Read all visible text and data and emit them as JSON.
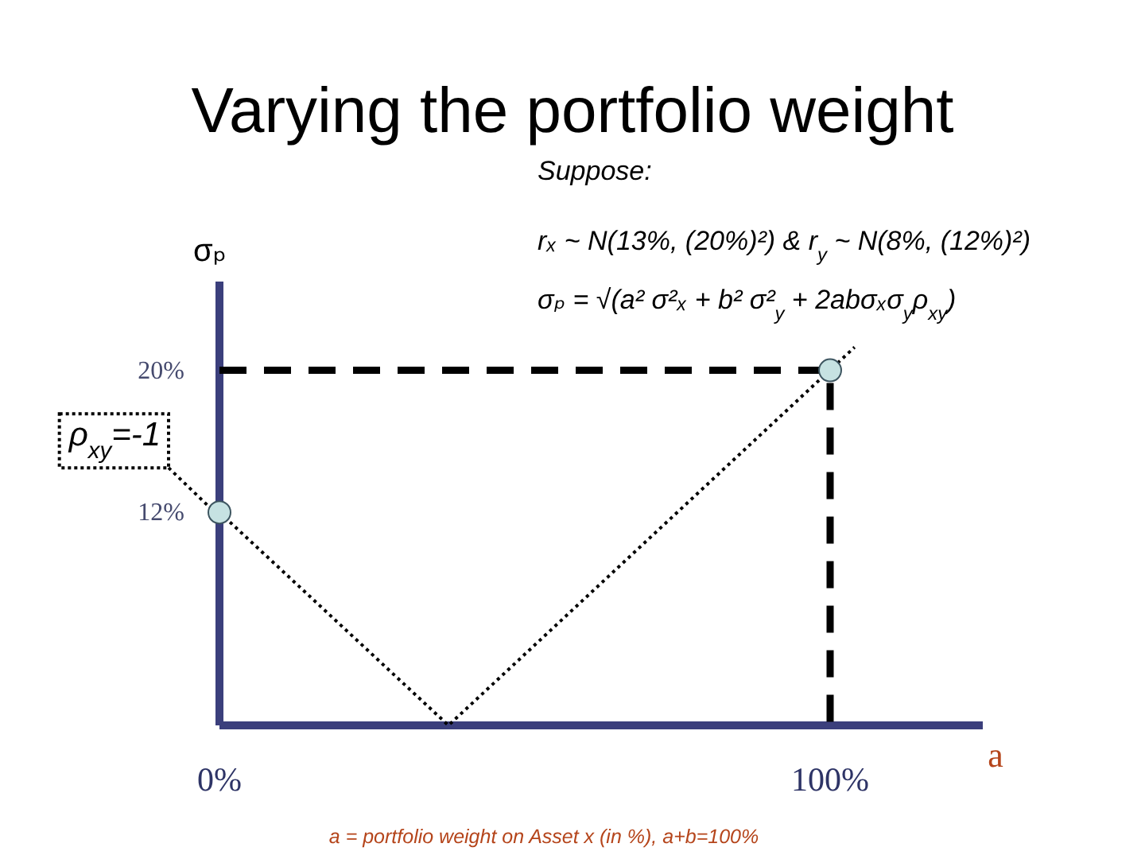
{
  "chart_data": {
    "type": "line",
    "title": "Varying the portfolio weight",
    "xlabel": "a",
    "ylabel": "σₚ",
    "xlim": [
      0,
      125
    ],
    "ylim": [
      0,
      25
    ],
    "xticks": [
      {
        "value": 0,
        "label": "0%"
      },
      {
        "value": 100,
        "label": "100%"
      }
    ],
    "yticks": [
      {
        "value": 12,
        "label": "12%"
      },
      {
        "value": 20,
        "label": "20%"
      }
    ],
    "series": [
      {
        "name": "ρ$_{xy}$=-1",
        "color": "#000000",
        "line_style": "dotted",
        "marker": "none",
        "x": [
          0,
          37.5,
          104
        ],
        "values": [
          12,
          0,
          21.3
        ]
      },
      {
        "color": "#000000",
        "line_style": "dashed",
        "marker": "none",
        "x": [
          0,
          100,
          100
        ],
        "values": [
          20,
          20,
          0
        ]
      },
      {
        "type": "scatter",
        "color": "#c6e2e2",
        "marker": "circle",
        "x": [
          0,
          100
        ],
        "values": [
          12,
          20
        ]
      }
    ],
    "annotations": [
      "Suppose:",
      "rₓ ~ N(13%, (20%)²) & r$_{y}$ ~ N(8%, (12%)²)",
      "σₚ = √(a² σ²ₓ + b² σ²$_{y}$ + 2abσₓσ$_{y}$ρ$_{xy}$)",
      "a = portfolio weight on Asset x (in %), a+b=100%"
    ]
  }
}
